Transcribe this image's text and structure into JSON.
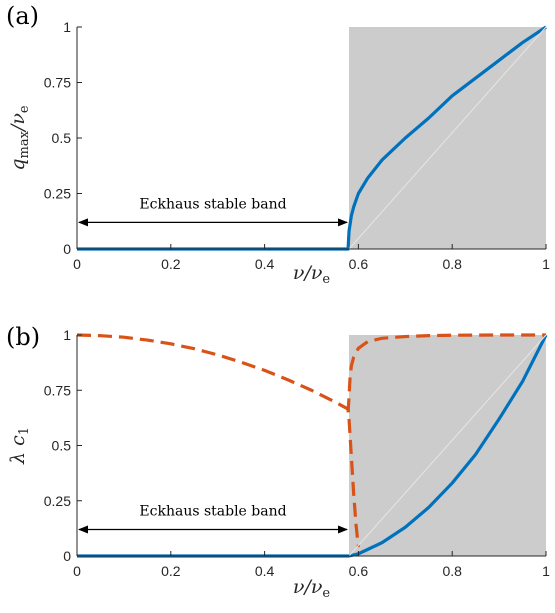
{
  "chart_data": [
    {
      "panel_label": "(a)",
      "type": "line",
      "xlabel": "ν/ν",
      "xlabel_sub": "e",
      "ylabel": "q",
      "ylabel_sub": "max",
      "ylabel_tail": "/ν",
      "ylabel_tail_sub": "e",
      "xlim": [
        0,
        1
      ],
      "ylim": [
        0,
        1
      ],
      "xticks": [
        "0",
        "0.2",
        "0.4",
        "0.6",
        "0.8",
        "1"
      ],
      "yticks": [
        "0",
        "0.25",
        "0.5",
        "0.75",
        "1"
      ],
      "grid": false,
      "shaded_region": {
        "x_start": 0.58,
        "x_end": 1.0,
        "color": "#cccccc"
      },
      "annotation": {
        "text": "Eckhaus stable band",
        "x_from": 0.0,
        "x_to": 0.58,
        "y": 0.12
      },
      "series": [
        {
          "style": "solid",
          "color": "#0072bd",
          "x": [
            0,
            0.1,
            0.2,
            0.3,
            0.4,
            0.5,
            0.577,
            0.578,
            0.58,
            0.585,
            0.59,
            0.6,
            0.62,
            0.65,
            0.7,
            0.75,
            0.8,
            0.85,
            0.9,
            0.95,
            1.0
          ],
          "y": [
            0,
            0,
            0,
            0,
            0,
            0,
            0,
            0.0,
            0.08,
            0.15,
            0.19,
            0.25,
            0.32,
            0.4,
            0.5,
            0.59,
            0.69,
            0.77,
            0.85,
            0.93,
            1.0
          ]
        },
        {
          "style": "dotted-faint",
          "color": "#e6e6e6",
          "x": [
            0.58,
            1.0
          ],
          "y": [
            0.0,
            1.0
          ]
        }
      ]
    },
    {
      "panel_label": "(b)",
      "type": "line",
      "xlabel": "ν/ν",
      "xlabel_sub": "e",
      "ylabel": "λ c",
      "ylabel_sub": "1",
      "ylabel_tail": "",
      "ylabel_tail_sub": "",
      "xlim": [
        0,
        1
      ],
      "ylim": [
        0,
        1
      ],
      "xticks": [
        "0",
        "0.2",
        "0.4",
        "0.6",
        "0.8",
        "1"
      ],
      "yticks": [
        "0",
        "0.25",
        "0.5",
        "0.75",
        "1"
      ],
      "grid": false,
      "shaded_region": {
        "x_start": 0.58,
        "x_end": 1.0,
        "color": "#cccccc"
      },
      "annotation": {
        "text": "Eckhaus stable band",
        "x_from": 0.0,
        "x_to": 0.58,
        "y": 0.12
      },
      "series": [
        {
          "style": "solid",
          "color": "#0072bd",
          "x": [
            0,
            0.1,
            0.2,
            0.3,
            0.4,
            0.5,
            0.58,
            0.6,
            0.62,
            0.65,
            0.7,
            0.75,
            0.8,
            0.85,
            0.9,
            0.95,
            1.0
          ],
          "y": [
            0,
            0,
            0,
            0,
            0,
            0,
            0,
            0.01,
            0.03,
            0.06,
            0.13,
            0.22,
            0.33,
            0.46,
            0.62,
            0.79,
            1.0
          ]
        },
        {
          "style": "dashed",
          "color": "#d95319",
          "x": [
            0,
            0.05,
            0.1,
            0.15,
            0.2,
            0.25,
            0.3,
            0.35,
            0.4,
            0.45,
            0.5,
            0.55,
            0.578,
            0.58,
            0.585,
            0.59,
            0.595,
            0.6
          ],
          "y": [
            1.0,
            0.997,
            0.99,
            0.977,
            0.96,
            0.938,
            0.91,
            0.877,
            0.84,
            0.797,
            0.75,
            0.697,
            0.665,
            0.62,
            0.45,
            0.28,
            0.14,
            0.04
          ]
        },
        {
          "style": "dashed",
          "color": "#d95319",
          "x": [
            0.578,
            0.58,
            0.582,
            0.585,
            0.59,
            0.6,
            0.62,
            0.65,
            0.7,
            0.75,
            0.8,
            0.9,
            1.0
          ],
          "y": [
            0.65,
            0.72,
            0.8,
            0.86,
            0.9,
            0.94,
            0.97,
            0.985,
            0.993,
            0.997,
            0.999,
            1.0,
            1.0
          ]
        },
        {
          "style": "dotted-faint",
          "color": "#e6e6e6",
          "x": [
            0.58,
            1.0
          ],
          "y": [
            0.0,
            1.0
          ]
        }
      ]
    }
  ]
}
